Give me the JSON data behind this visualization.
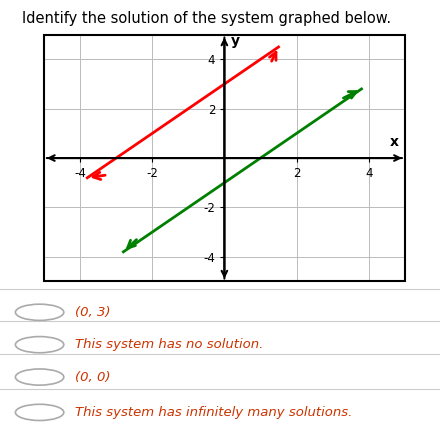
{
  "title": "Identify the solution of the system graphed below.",
  "title_fontsize": 10.5,
  "xlim": [
    -5,
    5
  ],
  "ylim": [
    -5,
    5
  ],
  "xticks": [
    -4,
    -2,
    2,
    4
  ],
  "yticks": [
    -4,
    -2,
    2,
    4
  ],
  "xlabel": "x",
  "ylabel": "y",
  "line1_color": "#ff0000",
  "line1_x": [
    -3.8,
    1.5
  ],
  "line1_intercept": 3,
  "line1_slope": 1,
  "line2_color": "#008000",
  "line2_x": [
    -2.8,
    3.8
  ],
  "line2_intercept": -1,
  "line2_slope": 1,
  "choices": [
    "(0, 3)",
    "This system has no solution.",
    "(0, 0)",
    "This system has infinitely many solutions."
  ],
  "choice_color": "#cc3300",
  "radio_color": "#aaaaaa",
  "sep_color": "#cccccc",
  "background": "#ffffff",
  "grid_color": "#bbbbbb",
  "axis_color": "#000000",
  "box_color": "#000000"
}
